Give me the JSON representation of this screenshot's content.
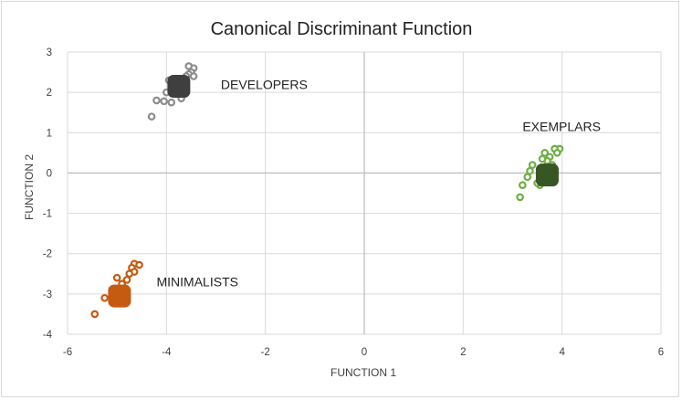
{
  "chart_data": {
    "type": "scatter",
    "title": "Canonical Discriminant Function",
    "xlabel": "FUNCTION 1",
    "ylabel": "FUNCTION 2",
    "xlim": [
      -6,
      6
    ],
    "ylim": [
      -4,
      3
    ],
    "x_ticks": [
      "-6",
      "-4",
      "-2",
      "0",
      "2",
      "4",
      "6"
    ],
    "y_ticks": [
      "3",
      "2",
      "1",
      "0",
      "-1",
      "-2",
      "-3",
      "-4"
    ],
    "grid": true,
    "groups": [
      {
        "name": "DEVELOPERS",
        "color": "#8c8c8c",
        "centroid_color": "#3f3f3f",
        "centroid": [
          -3.75,
          2.15
        ],
        "points": [
          [
            -3.45,
            2.6
          ],
          [
            -3.5,
            2.5
          ],
          [
            -3.55,
            2.45
          ],
          [
            -3.6,
            2.4
          ],
          [
            -3.7,
            2.3
          ],
          [
            -3.8,
            2.25
          ],
          [
            -3.85,
            2.2
          ],
          [
            -3.9,
            2.1
          ],
          [
            -4.0,
            2.0
          ],
          [
            -3.95,
            2.3
          ],
          [
            -3.65,
            2.05
          ],
          [
            -3.7,
            1.85
          ],
          [
            -3.9,
            1.75
          ],
          [
            -4.05,
            1.78
          ],
          [
            -4.2,
            1.8
          ],
          [
            -4.3,
            1.4
          ],
          [
            -3.55,
            2.65
          ],
          [
            -3.45,
            2.4
          ]
        ]
      },
      {
        "name": "EXEMPLARS",
        "color": "#70ad47",
        "centroid_color": "#375623",
        "centroid": [
          3.7,
          -0.05
        ],
        "points": [
          [
            3.95,
            0.6
          ],
          [
            3.85,
            0.6
          ],
          [
            3.9,
            0.5
          ],
          [
            3.75,
            0.4
          ],
          [
            3.7,
            0.3
          ],
          [
            3.65,
            0.5
          ],
          [
            3.6,
            0.35
          ],
          [
            3.85,
            0.1
          ],
          [
            3.4,
            0.2
          ],
          [
            3.35,
            0.05
          ],
          [
            3.3,
            -0.1
          ],
          [
            3.2,
            -0.3
          ],
          [
            3.55,
            -0.3
          ],
          [
            3.5,
            -0.25
          ],
          [
            3.15,
            -0.6
          ],
          [
            3.8,
            0.2
          ],
          [
            3.6,
            -0.05
          ]
        ]
      },
      {
        "name": "MINIMALISTS",
        "color": "#c55a11",
        "centroid_color": "#c55a11",
        "centroid": [
          -4.95,
          -3.05
        ],
        "points": [
          [
            -5.0,
            -2.6
          ],
          [
            -5.1,
            -2.9
          ],
          [
            -5.25,
            -3.1
          ],
          [
            -5.45,
            -3.5
          ],
          [
            -4.65,
            -2.25
          ],
          [
            -4.55,
            -2.28
          ],
          [
            -4.7,
            -2.35
          ],
          [
            -4.65,
            -2.45
          ],
          [
            -4.75,
            -2.5
          ],
          [
            -4.8,
            -2.65
          ],
          [
            -4.85,
            -2.85
          ],
          [
            -4.9,
            -2.75
          ],
          [
            -4.95,
            -3.2
          ],
          [
            -5.05,
            -3.0
          ]
        ]
      }
    ],
    "annotations": [
      {
        "text": "DEVELOPERS",
        "x": -2.9,
        "y": 2.2
      },
      {
        "text": "EXEMPLARS",
        "x": 3.2,
        "y": 1.15
      },
      {
        "text": "MINIMALISTS",
        "x": -4.2,
        "y": -2.7
      }
    ]
  }
}
